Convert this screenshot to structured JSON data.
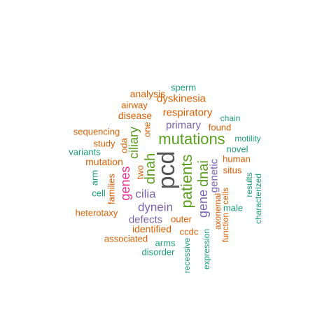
{
  "palette": {
    "gray": "#555555",
    "green": "#5a9e1e",
    "purple": "#7a64ae",
    "orange": "#d95f02",
    "teal": "#1b9e77",
    "pink": "#e7298a"
  },
  "words": {
    "pcd": "pcd",
    "mutations": "mutations",
    "patients": "patients",
    "dnah": "dnah",
    "dnai": "dnai",
    "ciliary": "ciliary",
    "genes": "genes",
    "gene": "gene",
    "dynein": "dynein",
    "cilia": "cilia",
    "genetic": "genetic",
    "respiratory": "respiratory",
    "dyskinesia": "dyskinesia",
    "primary": "primary",
    "defects": "defects",
    "identified": "identified",
    "mutation": "mutation",
    "analysis": "analysis",
    "disease": "disease",
    "airway": "airway",
    "sperm": "sperm",
    "sequencing": "sequencing",
    "study": "study",
    "oda": "oda",
    "one": "one",
    "two": "two",
    "families": "families",
    "variants": "variants",
    "arm": "arm",
    "cell": "cell",
    "heterotaxy": "heterotaxy",
    "associated": "associated",
    "arms": "arms",
    "disorder": "disorder",
    "ccdc": "ccdc",
    "outer": "outer",
    "recessive": "recessive",
    "expression": "expression",
    "axonemal": "axonemal",
    "function": "function",
    "cells": "cells",
    "male": "male",
    "situs": "situs",
    "human": "human",
    "novel": "novel",
    "motility": "motility",
    "found": "found",
    "chain": "chain",
    "results": "results",
    "characterized": "characterized"
  }
}
